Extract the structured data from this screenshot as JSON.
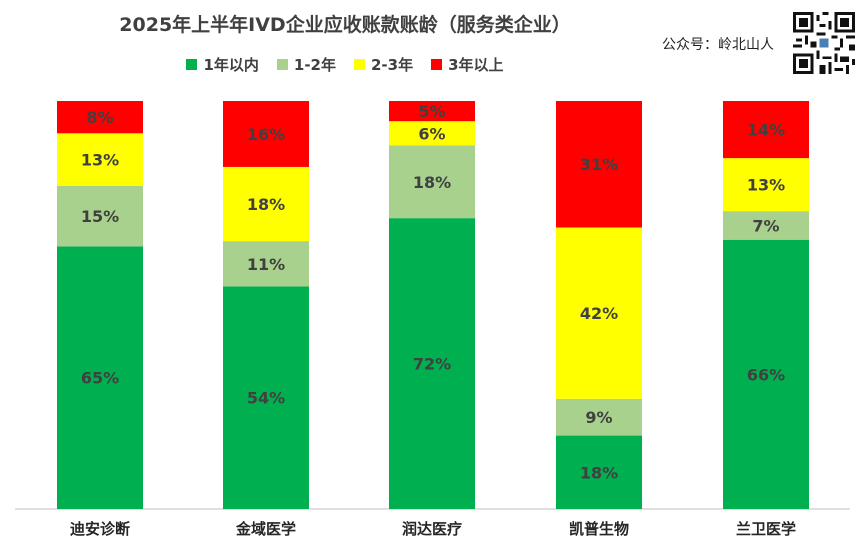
{
  "header": {
    "account": "公众号：岭北山人"
  },
  "colors": {
    "within_1y": "#00B050",
    "y1_2": "#A9D18E",
    "y2_3": "#FFFF00",
    "over_3y": "#FF0000",
    "text": "#404040"
  },
  "icons": {
    "qr": "qr-code-icon"
  },
  "chart_data": {
    "type": "bar",
    "stacked": true,
    "percent": true,
    "title": "2025年上半年IVD企业应收账款账龄（服务类企业）",
    "xlabel": "",
    "ylabel": "",
    "ylim": [
      0,
      100
    ],
    "legend_position": "top",
    "categories": [
      "迪安诊断",
      "金域医学",
      "润达医疗",
      "凯普生物",
      "兰卫医学"
    ],
    "series": [
      {
        "name": "1年以内",
        "values": [
          65,
          54,
          72,
          18,
          66
        ],
        "color": "#00B050"
      },
      {
        "name": "1-2年",
        "values": [
          15,
          11,
          18,
          9,
          7
        ],
        "color": "#A9D18E"
      },
      {
        "name": "2-3年",
        "values": [
          13,
          18,
          6,
          42,
          13
        ],
        "color": "#FFFF00"
      },
      {
        "name": "3年以上",
        "values": [
          8,
          16,
          5,
          31,
          14
        ],
        "color": "#FF0000"
      }
    ],
    "labels": [
      [
        "65%",
        "54%",
        "72%",
        "18%",
        "66%"
      ],
      [
        "15%",
        "11%",
        "18%",
        "9%",
        "7%"
      ],
      [
        "13%",
        "18%",
        "6%",
        "42%",
        "13%"
      ],
      [
        "8%",
        "16%",
        "5%",
        "31%",
        "14%"
      ]
    ]
  }
}
